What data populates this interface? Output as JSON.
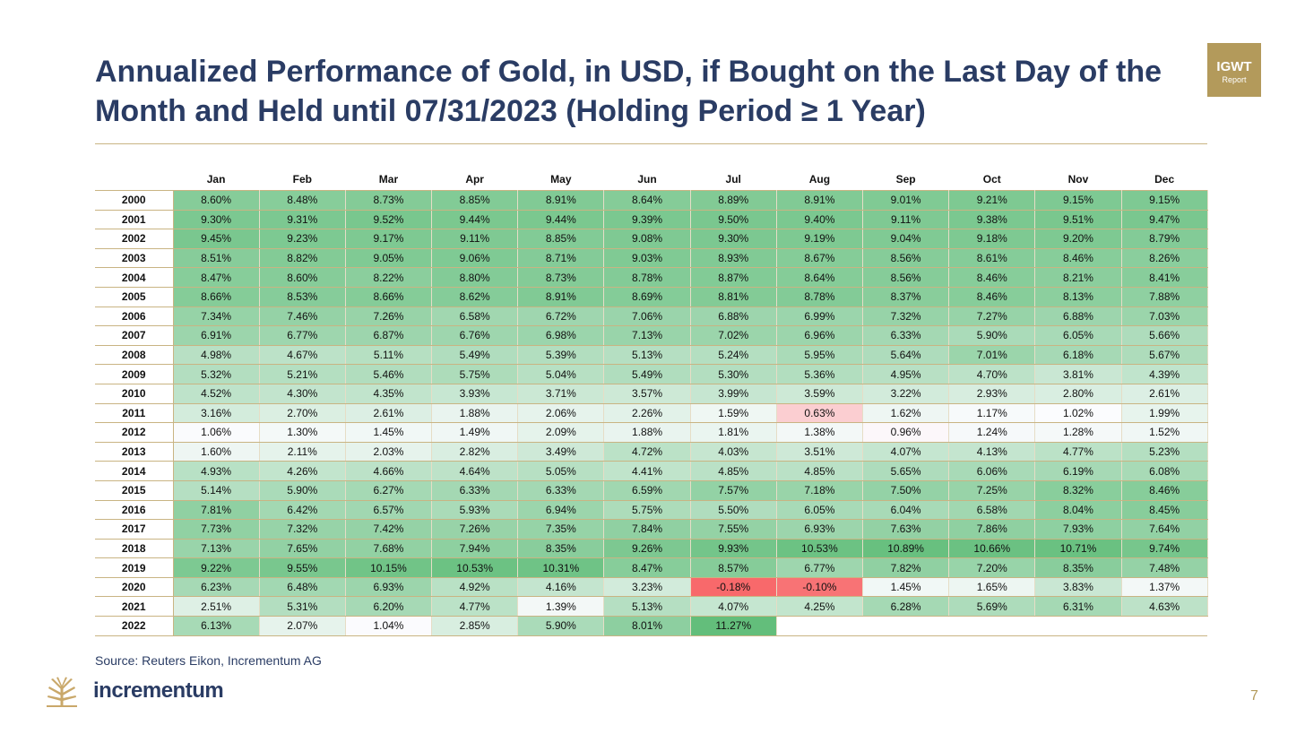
{
  "header": {
    "title_line1": "Annualized Performance of Gold, in USD, if Bought on the Last Day of the",
    "title_line2": "Month and Held until 07/31/2023 (Holding Period ≥ 1 Year)"
  },
  "badge": {
    "line1": "IGWT",
    "line2": "Report"
  },
  "footer": {
    "source": "Source: Reuters Eikon, Incrementum AG",
    "brand": "incrementum",
    "page_number": "7"
  },
  "colors": {
    "title": "#2a3c64",
    "accent_gold": "#b39a5b",
    "scale_low": "#f8696b",
    "scale_mid": "#fcfcff",
    "scale_high": "#63be7b"
  },
  "chart_data": {
    "type": "heatmap",
    "columns": [
      "Jan",
      "Feb",
      "Mar",
      "Apr",
      "May",
      "Jun",
      "Jul",
      "Aug",
      "Sep",
      "Oct",
      "Nov",
      "Dec"
    ],
    "rows": [
      "2000",
      "2001",
      "2002",
      "2003",
      "2004",
      "2005",
      "2006",
      "2007",
      "2008",
      "2009",
      "2010",
      "2011",
      "2012",
      "2013",
      "2014",
      "2015",
      "2016",
      "2017",
      "2018",
      "2019",
      "2020",
      "2021",
      "2022"
    ],
    "unit": "%",
    "values": [
      [
        8.6,
        8.48,
        8.73,
        8.85,
        8.91,
        8.64,
        8.89,
        8.91,
        9.01,
        9.21,
        9.15,
        9.15
      ],
      [
        9.3,
        9.31,
        9.52,
        9.44,
        9.44,
        9.39,
        9.5,
        9.4,
        9.11,
        9.38,
        9.51,
        9.47
      ],
      [
        9.45,
        9.23,
        9.17,
        9.11,
        8.85,
        9.08,
        9.3,
        9.19,
        9.04,
        9.18,
        9.2,
        8.79
      ],
      [
        8.51,
        8.82,
        9.05,
        9.06,
        8.71,
        9.03,
        8.93,
        8.67,
        8.56,
        8.61,
        8.46,
        8.26
      ],
      [
        8.47,
        8.6,
        8.22,
        8.8,
        8.73,
        8.78,
        8.87,
        8.64,
        8.56,
        8.46,
        8.21,
        8.41
      ],
      [
        8.66,
        8.53,
        8.66,
        8.62,
        8.91,
        8.69,
        8.81,
        8.78,
        8.37,
        8.46,
        8.13,
        7.88
      ],
      [
        7.34,
        7.46,
        7.26,
        6.58,
        6.72,
        7.06,
        6.88,
        6.99,
        7.32,
        7.27,
        6.88,
        7.03
      ],
      [
        6.91,
        6.77,
        6.87,
        6.76,
        6.98,
        7.13,
        7.02,
        6.96,
        6.33,
        5.9,
        6.05,
        5.66
      ],
      [
        4.98,
        4.67,
        5.11,
        5.49,
        5.39,
        5.13,
        5.24,
        5.95,
        5.64,
        7.01,
        6.18,
        5.67
      ],
      [
        5.32,
        5.21,
        5.46,
        5.75,
        5.04,
        5.49,
        5.3,
        5.36,
        4.95,
        4.7,
        3.81,
        4.39
      ],
      [
        4.52,
        4.3,
        4.35,
        3.93,
        3.71,
        3.57,
        3.99,
        3.59,
        3.22,
        2.93,
        2.8,
        2.61
      ],
      [
        3.16,
        2.7,
        2.61,
        1.88,
        2.06,
        2.26,
        1.59,
        0.63,
        1.62,
        1.17,
        1.02,
        1.99
      ],
      [
        1.06,
        1.3,
        1.45,
        1.49,
        2.09,
        1.88,
        1.81,
        1.38,
        0.96,
        1.24,
        1.28,
        1.52
      ],
      [
        1.6,
        2.11,
        2.03,
        2.82,
        3.49,
        4.72,
        4.03,
        3.51,
        4.07,
        4.13,
        4.77,
        5.23
      ],
      [
        4.93,
        4.26,
        4.66,
        4.64,
        5.05,
        4.41,
        4.85,
        4.85,
        5.65,
        6.06,
        6.19,
        6.08
      ],
      [
        5.14,
        5.9,
        6.27,
        6.33,
        6.33,
        6.59,
        7.57,
        7.18,
        7.5,
        7.25,
        8.32,
        8.46
      ],
      [
        7.81,
        6.42,
        6.57,
        5.93,
        6.94,
        5.75,
        5.5,
        6.05,
        6.04,
        6.58,
        8.04,
        8.45
      ],
      [
        7.73,
        7.32,
        7.42,
        7.26,
        7.35,
        7.84,
        7.55,
        6.93,
        7.63,
        7.86,
        7.93,
        7.64
      ],
      [
        7.13,
        7.65,
        7.68,
        7.94,
        8.35,
        9.26,
        9.93,
        10.53,
        10.89,
        10.66,
        10.71,
        9.74
      ],
      [
        9.22,
        9.55,
        10.15,
        10.53,
        10.31,
        8.47,
        8.57,
        6.77,
        7.82,
        7.2,
        8.35,
        7.48
      ],
      [
        6.23,
        6.48,
        6.93,
        4.92,
        4.16,
        3.23,
        -0.18,
        -0.1,
        1.45,
        1.65,
        3.83,
        1.37
      ],
      [
        2.51,
        5.31,
        6.2,
        4.77,
        1.39,
        5.13,
        4.07,
        4.25,
        6.28,
        5.69,
        6.31,
        4.63
      ],
      [
        6.13,
        2.07,
        1.04,
        2.85,
        5.9,
        8.01,
        11.27,
        null,
        null,
        null,
        null,
        null
      ]
    ],
    "legend": "none"
  }
}
